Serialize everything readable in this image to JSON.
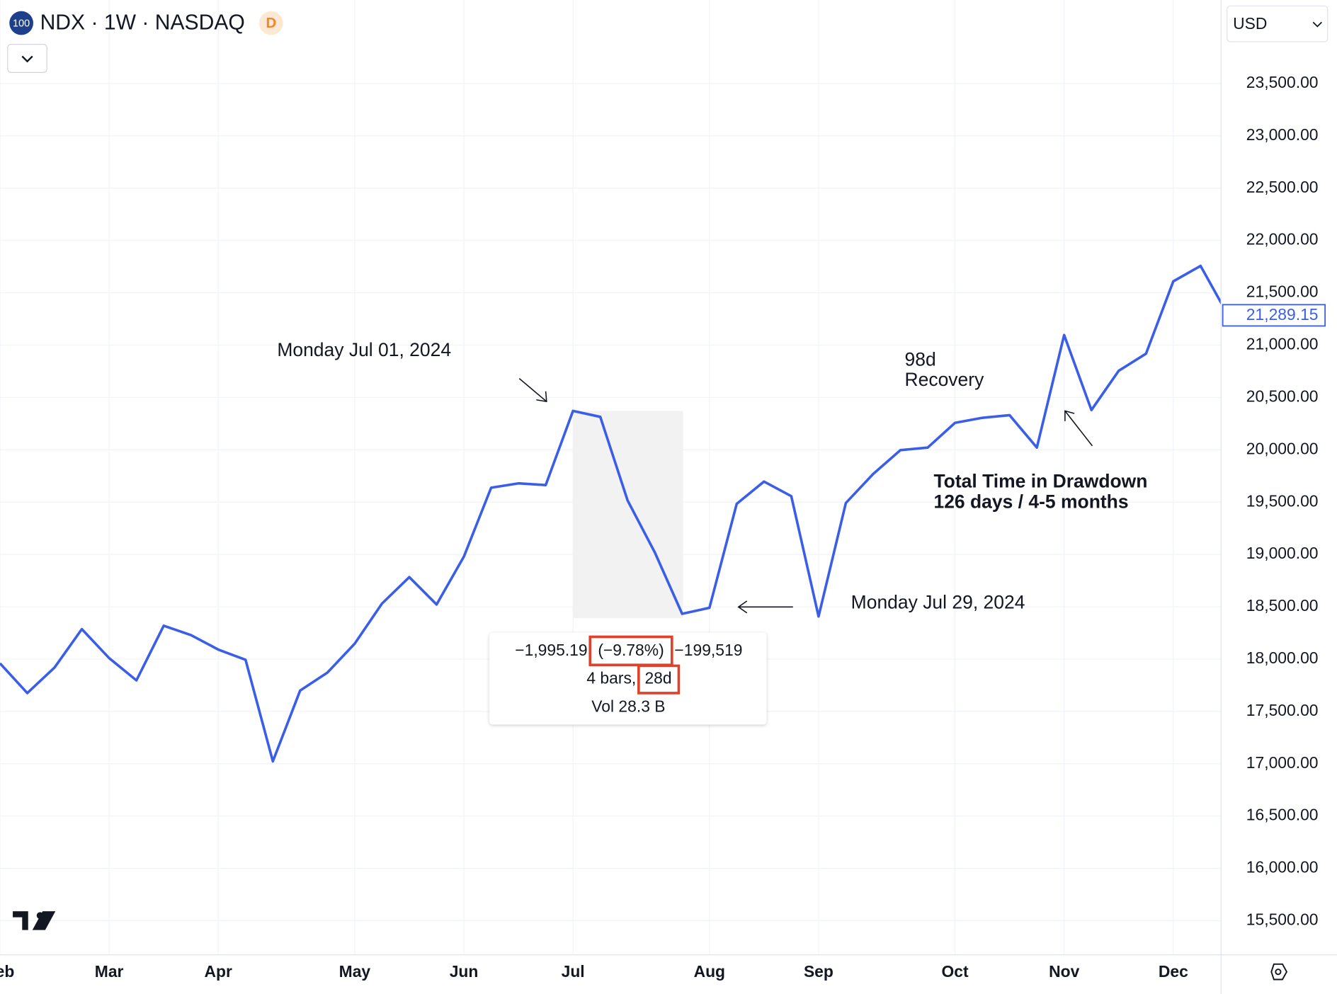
{
  "chart_data": {
    "type": "line",
    "header": {
      "symbol_badge": "100",
      "title": "NDX · 1W · NASDAQ",
      "badge": "D",
      "currency": "USD"
    },
    "color": "#3a5ee8",
    "values": [
      17960,
      17675,
      17920,
      18286,
      18009,
      17797,
      18319,
      18229,
      18091,
      17993,
      17023,
      17700,
      17871,
      18148,
      18531,
      18783,
      18522,
      18979,
      19638,
      19679,
      19663,
      20372,
      20315,
      19516,
      19019,
      18433,
      18490,
      19484,
      19696,
      19557,
      18408,
      19492,
      19769,
      19997,
      20021,
      20258,
      20306,
      20331,
      20021,
      21097,
      20380,
      20755,
      20918,
      21610,
      21757,
      21289.15
    ],
    "last_price_label": "21,289.15",
    "xlim": [
      0,
      44.75
    ],
    "xticks": [
      {
        "value": 0,
        "label": "Feb"
      },
      {
        "value": 4,
        "label": "Mar"
      },
      {
        "value": 8,
        "label": "Apr"
      },
      {
        "value": 13,
        "label": "May"
      },
      {
        "value": 17,
        "label": "Jun"
      },
      {
        "value": 21,
        "label": "Jul"
      },
      {
        "value": 26,
        "label": "Aug"
      },
      {
        "value": 30,
        "label": "Sep"
      },
      {
        "value": 35,
        "label": "Oct"
      },
      {
        "value": 39,
        "label": "Nov"
      },
      {
        "value": 43,
        "label": "Dec"
      }
    ],
    "ylim": [
      15256,
      24298
    ],
    "yticks": [
      {
        "value": 15500,
        "label": "15,500.00"
      },
      {
        "value": 16000,
        "label": "16,000.00"
      },
      {
        "value": 16500,
        "label": "16,500.00"
      },
      {
        "value": 17000,
        "label": "17,000.00"
      },
      {
        "value": 17500,
        "label": "17,500.00"
      },
      {
        "value": 18000,
        "label": "18,000.00"
      },
      {
        "value": 18500,
        "label": "18,500.00"
      },
      {
        "value": 19000,
        "label": "19,000.00"
      },
      {
        "value": 19500,
        "label": "19,500.00"
      },
      {
        "value": 20000,
        "label": "20,000.00"
      },
      {
        "value": 20500,
        "label": "20,500.00"
      },
      {
        "value": 21000,
        "label": "21,000.00"
      },
      {
        "value": 21500,
        "label": "21,500.00"
      },
      {
        "value": 22000,
        "label": "22,000.00"
      },
      {
        "value": 22500,
        "label": "22,500.00"
      },
      {
        "value": 23000,
        "label": "23,000.00"
      },
      {
        "value": 23500,
        "label": "23,500.00"
      }
    ],
    "grid": true,
    "annotations": {
      "peak": "Monday Jul 01, 2024",
      "trough": "Monday Jul 29, 2024",
      "recovery_days": "98d",
      "recovery": "Recovery",
      "drawdown_title": "Total Time in Drawdown",
      "drawdown_detail": "126 days / 4-5 months"
    },
    "tooltip": {
      "change": "−1,995.19",
      "percent": "(−9.78%)",
      "ticks": "−199,519",
      "bars": "4 bars,",
      "days": "28d",
      "volume": "Vol 28.3 B"
    }
  }
}
